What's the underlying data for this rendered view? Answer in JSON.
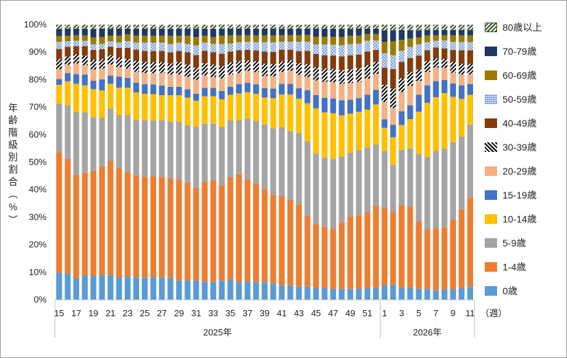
{
  "chart_data": {
    "type": "bar",
    "stacked": true,
    "ylabel": "年齢階級別割合（%）",
    "xunit": "（週）",
    "ylim": [
      0,
      100
    ],
    "yticks": [
      "0%",
      "10%",
      "20%",
      "30%",
      "40%",
      "50%",
      "60%",
      "70%",
      "80%",
      "90%",
      "100%"
    ],
    "grid": false,
    "legend_position": "right",
    "year_groups": [
      {
        "label": "2025年",
        "weeks": 38
      },
      {
        "label": "2026年",
        "weeks": 11
      }
    ],
    "categories": [
      "15",
      "16",
      "17",
      "18",
      "19",
      "20",
      "21",
      "22",
      "23",
      "24",
      "25",
      "26",
      "27",
      "28",
      "29",
      "30",
      "31",
      "32",
      "33",
      "34",
      "35",
      "36",
      "37",
      "38",
      "39",
      "40",
      "41",
      "42",
      "43",
      "44",
      "45",
      "46",
      "47",
      "48",
      "49",
      "50",
      "51",
      "52",
      "1",
      "2",
      "3",
      "4",
      "5",
      "6",
      "7",
      "8",
      "9",
      "10",
      "11"
    ],
    "tick_labels": [
      "15",
      "17",
      "19",
      "21",
      "23",
      "25",
      "27",
      "29",
      "31",
      "33",
      "35",
      "37",
      "39",
      "41",
      "43",
      "45",
      "47",
      "49",
      "51",
      "1",
      "3",
      "5",
      "7",
      "9",
      "11"
    ],
    "series": [
      {
        "name": "0歳",
        "color": "#5b9bd5",
        "pattern": "solid",
        "values": [
          9.5,
          9.5,
          8,
          9,
          8.5,
          9,
          9,
          8,
          8.5,
          8,
          8,
          8,
          8,
          8,
          7,
          7,
          7,
          6.5,
          6.5,
          7,
          7.5,
          6.5,
          7,
          6.5,
          6.5,
          6,
          5.5,
          5.5,
          5,
          5,
          4.5,
          4.5,
          4,
          4,
          4,
          4,
          4.5,
          4.5,
          5,
          5.5,
          4.5,
          4.5,
          4,
          4,
          3.5,
          4,
          4,
          4.5,
          5
        ]
      },
      {
        "name": "1-4歳",
        "color": "#ed7d31",
        "pattern": "solid",
        "values": [
          42,
          41.5,
          38.5,
          38,
          37.5,
          39.5,
          41.5,
          40,
          38,
          37,
          36.5,
          36.5,
          36.5,
          36,
          36.5,
          35.5,
          33.5,
          36.5,
          37,
          34.5,
          38,
          40,
          38.5,
          36.5,
          34.5,
          32.5,
          34,
          32.5,
          31,
          27,
          24,
          23,
          22.5,
          24,
          26,
          27,
          28,
          31,
          27,
          26,
          30,
          29,
          24,
          22,
          23,
          23.5,
          26,
          29,
          33
        ]
      },
      {
        "name": "5-9歳",
        "color": "#a5a5a5",
        "pattern": "solid",
        "values": [
          17,
          19.5,
          23.5,
          22.5,
          19,
          18,
          19,
          19.5,
          21,
          20,
          20.5,
          20,
          20.5,
          20.5,
          21,
          21,
          22,
          21,
          20.5,
          21,
          21,
          20,
          23,
          23,
          24,
          24.5,
          26,
          26,
          27,
          28.5,
          26.5,
          26,
          26,
          24,
          23,
          24,
          24,
          23,
          20,
          17,
          20,
          21,
          24,
          27,
          29,
          30,
          29,
          27,
          27
        ]
      },
      {
        "name": "10-14歳",
        "color": "#ffc000",
        "pattern": "solid",
        "values": [
          6.5,
          8.5,
          10.5,
          10,
          10,
          10,
          9,
          10,
          10,
          10,
          9.5,
          9.5,
          9,
          9.5,
          9.5,
          10,
          9.5,
          10,
          10,
          10,
          9.5,
          10,
          10,
          10,
          10,
          11,
          12.5,
          14,
          13,
          14.5,
          17,
          17,
          17,
          15,
          14,
          14,
          14,
          15,
          8,
          10,
          9,
          10.5,
          15,
          20,
          20,
          21,
          17,
          14,
          11
        ]
      },
      {
        "name": "15-19歳",
        "color": "#4472c4",
        "pattern": "solid",
        "values": [
          2,
          3,
          3.5,
          4,
          3,
          4,
          3,
          4,
          3.5,
          3.5,
          3.5,
          3.5,
          3.5,
          3,
          3,
          3,
          2.5,
          3,
          3,
          3,
          3,
          3.5,
          3.5,
          3.5,
          3.5,
          3.5,
          4,
          4,
          4,
          5,
          5,
          5.5,
          5.5,
          5.5,
          5,
          5,
          5.5,
          5.5,
          3,
          4.5,
          5,
          5,
          6,
          6.5,
          6,
          5,
          5,
          5,
          4
        ]
      },
      {
        "name": "20-29歳",
        "color": "#f4b183",
        "pattern": "solid",
        "values": [
          3.5,
          3,
          4,
          3.5,
          4,
          4,
          4,
          3.5,
          3.5,
          4,
          4,
          4,
          4.5,
          4.5,
          4.5,
          4.5,
          5,
          4.5,
          4,
          4.5,
          4.5,
          4,
          4.5,
          4.5,
          4.5,
          4.5,
          4.5,
          5,
          5,
          5,
          5.5,
          6,
          6,
          6,
          6,
          6,
          6,
          6,
          6,
          6,
          7,
          7,
          5,
          5,
          5,
          4.5,
          4,
          4,
          3.5
        ]
      },
      {
        "name": "30-39歳",
        "color": "#ffffff",
        "pattern": "black-diagonal",
        "values": [
          3.5,
          3,
          3.5,
          3.5,
          3.5,
          3.5,
          3.5,
          3.5,
          3.5,
          4,
          4,
          4,
          4,
          4,
          4.5,
          4.5,
          4.5,
          4.5,
          4.5,
          4.5,
          4.5,
          4.5,
          4,
          4,
          4.5,
          4.5,
          4,
          4,
          4.5,
          5,
          5,
          5,
          5,
          5,
          5,
          5,
          5,
          4.5,
          6,
          7,
          5,
          5,
          4,
          4,
          3.5,
          3.5,
          4,
          4,
          4
        ]
      },
      {
        "name": "40-49歳",
        "color": "#843c0c",
        "pattern": "solid",
        "values": [
          3.5,
          3.5,
          3,
          3.5,
          3.5,
          3.5,
          3,
          3.5,
          4,
          4,
          4,
          4,
          4,
          4,
          4,
          4.5,
          4.5,
          4.5,
          4.5,
          4.5,
          4,
          4,
          4,
          4,
          4.5,
          4.5,
          4.5,
          4,
          4.5,
          5,
          5,
          5,
          5,
          5,
          5,
          5,
          5,
          4.5,
          6,
          7,
          6,
          5,
          5,
          4,
          4,
          4,
          4.5,
          5,
          5
        ]
      },
      {
        "name": "50-59歳",
        "color": "#b4c7e7",
        "pattern": "blue-dots",
        "values": [
          2.5,
          2,
          2,
          2,
          2,
          2,
          2,
          2,
          2.5,
          2.5,
          3,
          3,
          3,
          3,
          3,
          3,
          3.5,
          3,
          3,
          3.5,
          3,
          3,
          3,
          3,
          3.5,
          3.5,
          3,
          3,
          3.5,
          3.5,
          3.5,
          4,
          4,
          4,
          4,
          4,
          4,
          3.5,
          5,
          5,
          4,
          4,
          4,
          3,
          2.5,
          3,
          3,
          3,
          3
        ]
      },
      {
        "name": "60-69歳",
        "color": "#9c7a00",
        "pattern": "solid",
        "values": [
          2,
          2,
          2,
          2,
          2.5,
          2.5,
          2,
          2.5,
          2.5,
          2.5,
          2.5,
          2.5,
          2.5,
          3,
          2.5,
          3,
          3,
          2.5,
          2.5,
          3,
          3,
          2.5,
          2.5,
          2.5,
          2.5,
          2.5,
          2.5,
          2.5,
          2.5,
          2.5,
          3,
          3,
          3,
          3,
          3,
          3,
          2.5,
          2.5,
          4,
          5,
          4,
          3,
          2.5,
          2.5,
          2,
          2,
          2.5,
          2.5,
          2.5
        ]
      },
      {
        "name": "70-79歳",
        "color": "#1f3864",
        "pattern": "solid",
        "values": [
          2.5,
          2.5,
          2.5,
          2.5,
          3,
          3,
          2.5,
          2.5,
          2,
          2.5,
          2.5,
          2.5,
          2.5,
          2.5,
          2.5,
          2.5,
          3,
          2.5,
          3,
          2.5,
          2.5,
          2.5,
          2.5,
          2.5,
          2.5,
          2.5,
          2.5,
          2.5,
          2.5,
          2.5,
          3,
          3,
          3,
          3,
          2.5,
          2.5,
          2,
          2,
          4,
          4,
          3.5,
          3,
          2.5,
          2,
          2,
          2,
          2,
          2,
          2
        ]
      },
      {
        "name": "80歳以上",
        "color": "#375623",
        "pattern": "green-diagonal",
        "values": [
          1.5,
          1.5,
          1.5,
          1.5,
          1.5,
          1.5,
          1.5,
          1.5,
          1.5,
          1.5,
          1.5,
          1.5,
          1.5,
          1.5,
          1.5,
          1.5,
          1.5,
          1.5,
          1.5,
          1.5,
          1.5,
          1.5,
          1.5,
          1.5,
          1.5,
          1.5,
          1.5,
          1.5,
          1.5,
          1.5,
          1.5,
          1.5,
          1.5,
          1.5,
          1.5,
          1.5,
          1.5,
          1.5,
          2,
          2,
          2,
          2,
          2,
          2,
          2,
          2,
          2,
          2,
          2
        ]
      }
    ]
  }
}
